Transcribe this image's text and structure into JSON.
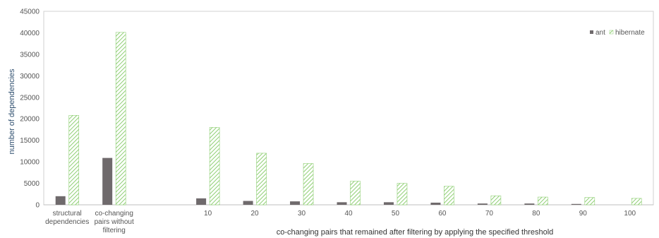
{
  "chart_data": {
    "type": "bar",
    "title": "",
    "xlabel": "co-changing pairs that remained after filtering by applying the specified threshold",
    "ylabel": "number of dependencies",
    "ylim": [
      0,
      45000
    ],
    "yticks": [
      0,
      5000,
      10000,
      15000,
      20000,
      25000,
      30000,
      35000,
      40000,
      45000
    ],
    "grid": false,
    "legend_position": "top-right",
    "categories": [
      [
        "structural",
        "dependencies"
      ],
      [
        "co-changing",
        "pairs without",
        "filtering"
      ],
      [
        ""
      ],
      [
        "10"
      ],
      [
        "20"
      ],
      [
        "30"
      ],
      [
        "40"
      ],
      [
        "50"
      ],
      [
        "60"
      ],
      [
        "70"
      ],
      [
        "80"
      ],
      [
        "90"
      ],
      [
        "100"
      ]
    ],
    "series": [
      {
        "name": "ant",
        "color": "#6f6a6c",
        "pattern": "solid",
        "values": [
          2000,
          10900,
          null,
          1500,
          900,
          800,
          600,
          600,
          500,
          300,
          300,
          200,
          0
        ]
      },
      {
        "name": "hibernate",
        "color": "#8fcf74",
        "pattern": "hatched",
        "values": [
          20800,
          40100,
          null,
          18000,
          12000,
          9600,
          5500,
          5000,
          4300,
          2100,
          1800,
          1700,
          1500
        ]
      }
    ]
  }
}
